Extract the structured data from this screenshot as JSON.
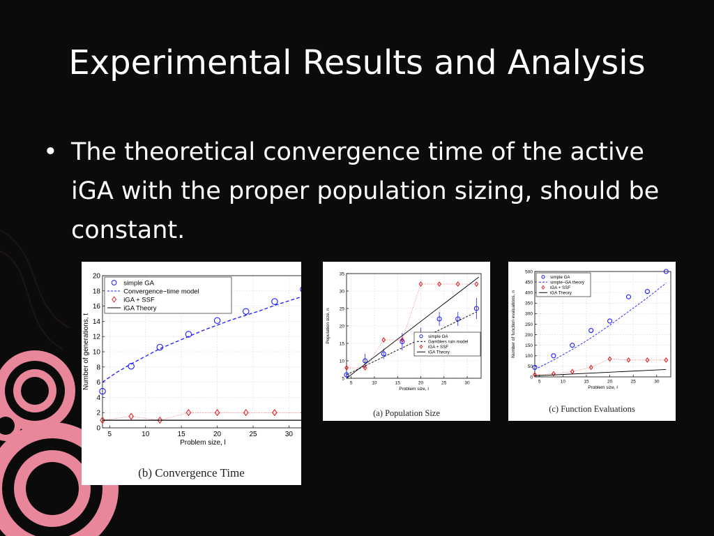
{
  "slide": {
    "title": "Experimental Results and Analysis",
    "bullets": [
      "The theoretical convergence time of the active iGA with the proper population sizing, should be constant."
    ],
    "background_color": "#0b0b0b",
    "text_color": "#ffffff",
    "decoration_color": "#e9879a"
  },
  "chart_data": [
    {
      "id": "convergence",
      "type": "line",
      "caption": "(b) Convergence Time",
      "xlabel": "Problem size, l",
      "ylabel": "Number of generations, t",
      "xlim": [
        4,
        32
      ],
      "ylim": [
        0,
        20
      ],
      "xticks": [
        5,
        10,
        15,
        20,
        25,
        30
      ],
      "yticks": [
        0,
        2,
        4,
        6,
        8,
        10,
        12,
        14,
        16,
        18,
        20
      ],
      "grid": true,
      "legend_position": "top-left",
      "series": [
        {
          "name": "simple GA",
          "style": "circle",
          "color": "#1a1aff",
          "x": [
            4,
            8,
            12,
            16,
            20,
            24,
            28,
            32
          ],
          "y": [
            4.8,
            8.1,
            10.6,
            12.3,
            14.1,
            15.3,
            16.6,
            18.2
          ]
        },
        {
          "name": "Convergence−time model",
          "style": "dashed",
          "color": "#1a1aff",
          "x": [
            4,
            6,
            8,
            10,
            12,
            14,
            16,
            18,
            20,
            22,
            24,
            26,
            28,
            30,
            32
          ],
          "y": [
            6.0,
            7.3,
            8.4,
            9.4,
            10.4,
            11.2,
            12.0,
            12.8,
            13.5,
            14.2,
            14.8,
            15.4,
            16.1,
            16.7,
            17.3
          ]
        },
        {
          "name": "iGA + SSF",
          "style": "diamond",
          "color": "#e01010",
          "x": [
            4,
            8,
            12,
            16,
            20,
            24,
            28,
            32
          ],
          "y": [
            1.0,
            1.5,
            1.0,
            2.0,
            2.0,
            2.0,
            2.0,
            2.0
          ]
        },
        {
          "name": "iGA Theory",
          "style": "solid",
          "color": "#000000",
          "x": [
            4,
            32
          ],
          "y": [
            1.0,
            1.0
          ]
        }
      ]
    },
    {
      "id": "population",
      "type": "line",
      "caption": "(a) Population Size",
      "xlabel": "Problem size, l",
      "ylabel": "Population size, n",
      "xlim": [
        4,
        33
      ],
      "ylim": [
        5,
        35
      ],
      "xticks": [
        5,
        10,
        15,
        20,
        25,
        30
      ],
      "yticks": [
        5,
        10,
        15,
        20,
        25,
        30,
        35
      ],
      "grid": true,
      "legend_position": "bottom-right",
      "series": [
        {
          "name": "simple GA",
          "style": "circle-errorbar",
          "color": "#1a1aff",
          "x": [
            4,
            8,
            12,
            16,
            20,
            24,
            28,
            32
          ],
          "y": [
            6.0,
            10.0,
            12.0,
            15.5,
            16.5,
            22.0,
            22.0,
            25.0
          ],
          "err": [
            1.0,
            2.0,
            1.5,
            2.5,
            3.0,
            2.0,
            2.0,
            3.0
          ]
        },
        {
          "name": "Gamblers ruin model",
          "style": "dashed",
          "color": "#000000",
          "x": [
            4,
            32
          ],
          "y": [
            6.0,
            24.0
          ]
        },
        {
          "name": "iGA + SSF",
          "style": "diamond",
          "color": "#e01010",
          "x": [
            4,
            8,
            12,
            16,
            20,
            24,
            28,
            32
          ],
          "y": [
            8.0,
            8.0,
            16.0,
            16.0,
            32.0,
            32.0,
            32.0,
            32.0
          ]
        },
        {
          "name": "iGA Theory",
          "style": "solid",
          "color": "#000000",
          "x": [
            4,
            32.5
          ],
          "y": [
            5.0,
            34.0
          ]
        }
      ]
    },
    {
      "id": "evaluations",
      "type": "line",
      "caption": "(c) Function Evaluations",
      "xlabel": "Problem size, l",
      "ylabel": "Number of function evaluations, n_fe",
      "xlim": [
        4,
        33
      ],
      "ylim": [
        0,
        500
      ],
      "xticks": [
        5,
        10,
        15,
        20,
        25,
        30
      ],
      "yticks": [
        0,
        50,
        100,
        150,
        200,
        250,
        300,
        350,
        400,
        450,
        500
      ],
      "grid": true,
      "legend_position": "top-left",
      "series": [
        {
          "name": "simple GA",
          "style": "circle",
          "color": "#1a1aff",
          "x": [
            4,
            8,
            12,
            16,
            20,
            24,
            28,
            32
          ],
          "y": [
            45,
            100,
            150,
            220,
            265,
            380,
            405,
            500
          ]
        },
        {
          "name": "simple−GA theory",
          "style": "dashed",
          "color": "#1a1aff",
          "x": [
            4,
            8,
            12,
            16,
            20,
            24,
            28,
            32
          ],
          "y": [
            35,
            80,
            130,
            185,
            245,
            310,
            375,
            445
          ]
        },
        {
          "name": "iGA + SSF",
          "style": "diamond",
          "color": "#e01010",
          "x": [
            4,
            8,
            12,
            16,
            20,
            24,
            28,
            32
          ],
          "y": [
            10,
            15,
            25,
            45,
            85,
            80,
            80,
            80
          ]
        },
        {
          "name": "iGA Theory",
          "style": "solid",
          "color": "#000000",
          "x": [
            4,
            32
          ],
          "y": [
            5,
            35
          ]
        }
      ]
    }
  ]
}
